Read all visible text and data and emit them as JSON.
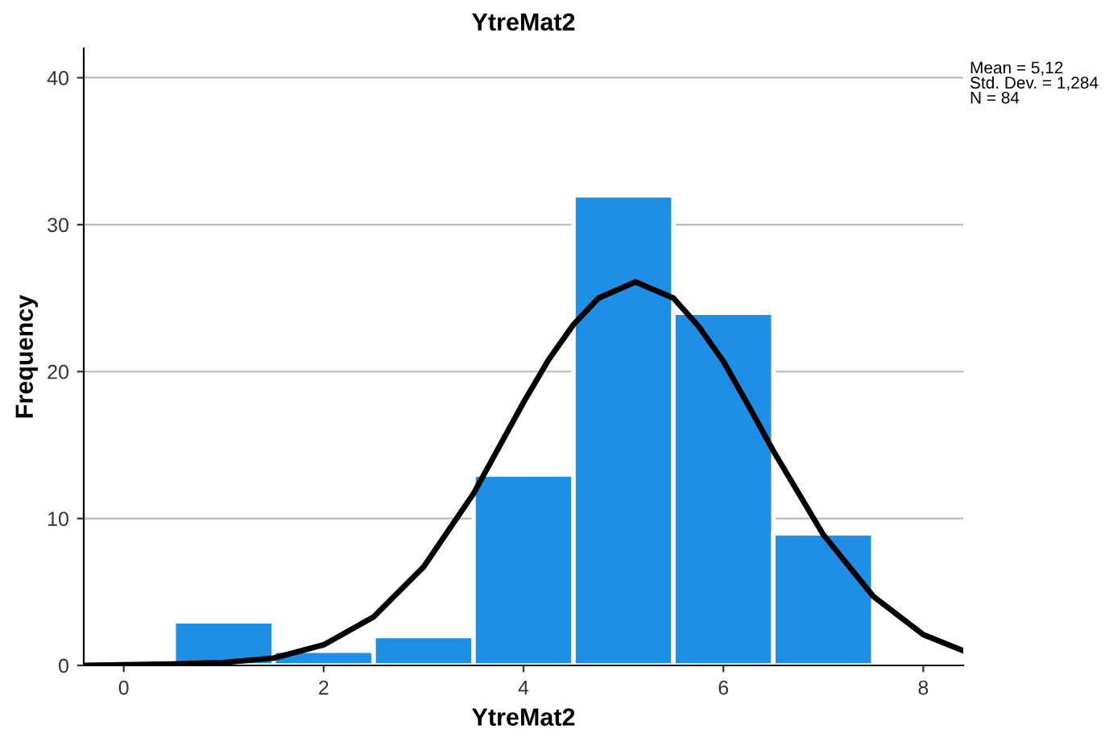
{
  "chart_data": {
    "type": "histogram",
    "title": "YtreMat2",
    "xlabel": "YtreMat2",
    "ylabel": "Frequency",
    "bins": [
      0.5,
      1.5,
      2.5,
      3.5,
      4.5,
      5.5,
      6.5,
      7.5
    ],
    "values": [
      3,
      1,
      2,
      13,
      32,
      24,
      9
    ],
    "color": "#1f8fe5",
    "series": [
      {
        "type": "line",
        "color": "#000000",
        "x": [
          -0.4,
          0.5,
          1,
          1.5,
          2,
          2.5,
          3,
          3.5,
          4,
          4.25,
          4.5,
          4.75,
          5.12,
          5.5,
          5.75,
          6,
          6.25,
          6.5,
          7,
          7.5,
          8,
          8.4
        ],
        "values": [
          0,
          0.1,
          0.2,
          0.5,
          1.4,
          3.3,
          6.7,
          11.7,
          17.9,
          20.8,
          23.2,
          25,
          26.1,
          25,
          23.1,
          20.7,
          17.7,
          14.6,
          8.9,
          4.7,
          2.1,
          1.0
        ]
      }
    ],
    "xlim": [
      -0.4,
      8.4
    ],
    "xticks": [
      0,
      2,
      4,
      6,
      8
    ],
    "ylim": [
      0,
      42
    ],
    "yticks": [
      0,
      10,
      20,
      30,
      40
    ],
    "grid": "y",
    "annotations": [
      "Mean = 5,12\nStd. Dev. = 1,284\nN = 84"
    ]
  }
}
